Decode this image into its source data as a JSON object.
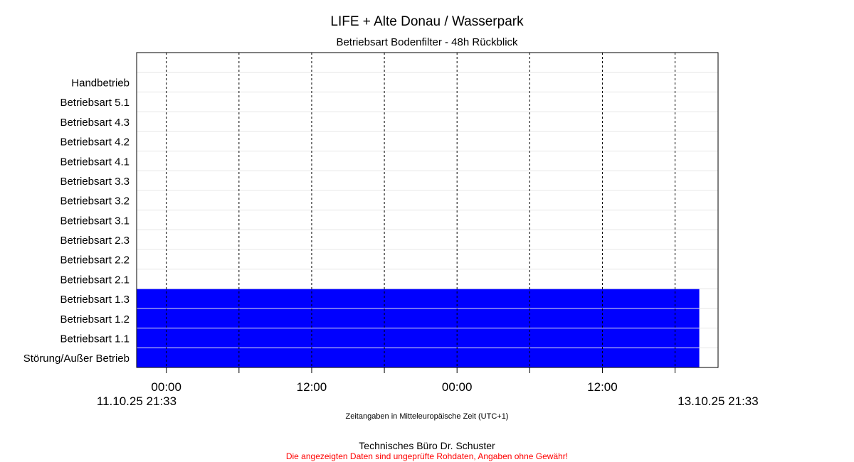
{
  "chart_data": {
    "type": "bar",
    "orientation": "horizontal-timeline",
    "title": "LIFE + Alte Donau / Wasserpark",
    "subtitle": "Betriebsart Bodenfilter - 48h Rückblick",
    "xlabel": "Zeitangaben in Mitteleuropäische Zeit (UTC+1)",
    "x_start": "11.10.25 21:33",
    "x_end": "13.10.25 21:33",
    "x_range_hours": [
      0,
      48
    ],
    "x_ticks": [
      {
        "hour": 2.45,
        "label": "00:00",
        "major": true
      },
      {
        "hour": 8.45,
        "label": "",
        "major": false
      },
      {
        "hour": 14.45,
        "label": "12:00",
        "major": true
      },
      {
        "hour": 20.45,
        "label": "",
        "major": false
      },
      {
        "hour": 26.45,
        "label": "00:00",
        "major": true
      },
      {
        "hour": 32.45,
        "label": "",
        "major": false
      },
      {
        "hour": 38.45,
        "label": "12:00",
        "major": true
      },
      {
        "hour": 44.45,
        "label": "",
        "major": false
      }
    ],
    "categories": [
      "",
      "Handbetrieb",
      "Betriebsart  5.1",
      "Betriebsart  4.3",
      "Betriebsart  4.2",
      "Betriebsart  4.1",
      "Betriebsart  3.3",
      "Betriebsart  3.2",
      "Betriebsart  3.1",
      "Betriebsart  2.3",
      "Betriebsart  2.2",
      "Betriebsart  2.1",
      "Betriebsart  1.3",
      "Betriebsart  1.2",
      "Betriebsart  1.1",
      "Störung/Außer Betrieb"
    ],
    "series": [
      {
        "color": "#0000ff",
        "intervals": [
          {
            "category": "Betriebsart  1.3",
            "start_hour": 0,
            "end_hour": 46.45
          },
          {
            "category": "Betriebsart  1.2",
            "start_hour": 0,
            "end_hour": 46.45
          },
          {
            "category": "Betriebsart  1.1",
            "start_hour": 0,
            "end_hour": 46.45
          },
          {
            "category": "Störung/Außer Betrieb",
            "start_hour": 0,
            "end_hour": 46.45
          }
        ]
      }
    ],
    "grid": "vertical dashed at x ticks"
  },
  "footer": {
    "company": "Technisches Büro Dr. Schuster",
    "disclaimer": "Die angezeigten Daten sind ungeprüfte Rohdaten, Angaben ohne Gewähr!",
    "disclaimer_color": "#ff0000"
  }
}
